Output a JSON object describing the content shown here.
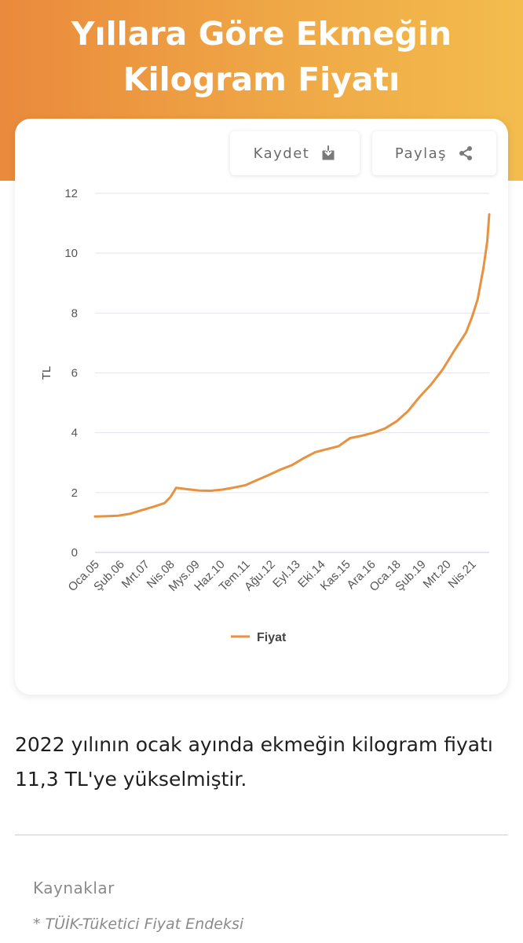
{
  "header": {
    "title_line1": "Yıllara Göre Ekmeğin",
    "title_line2": "Kilogram Fiyatı"
  },
  "toolbar": {
    "save_label": "Kaydet",
    "save_icon": "download-icon",
    "share_label": "Paylaş",
    "share_icon": "share-icon"
  },
  "colors": {
    "line": "#e8913f",
    "header_gradient_start": "#ea8a3c",
    "header_gradient_end": "#f3bc4d"
  },
  "chart_data": {
    "type": "line",
    "title": "",
    "xlabel": "",
    "ylabel": "TL",
    "ylim": [
      0,
      12
    ],
    "yticks": [
      0,
      2,
      4,
      6,
      8,
      10,
      12
    ],
    "xticks": [
      "Oca.05",
      "Şub.06",
      "Mrt.07",
      "Nis.08",
      "Mys.09",
      "Haz.10",
      "Tem.11",
      "Ağu.12",
      "Eyl.13",
      "Eki.14",
      "Kas.15",
      "Ara.16",
      "Oca.18",
      "Şub.19",
      "Mrt.20",
      "Nis.21"
    ],
    "grid": true,
    "legend_position": "bottom",
    "series": [
      {
        "name": "Fiyat",
        "x": [
          "2005-01",
          "2005-07",
          "2006-01",
          "2006-07",
          "2007-01",
          "2007-07",
          "2008-01",
          "2008-04",
          "2008-07",
          "2009-01",
          "2009-07",
          "2010-01",
          "2010-07",
          "2011-01",
          "2011-07",
          "2012-01",
          "2012-07",
          "2013-01",
          "2013-07",
          "2014-01",
          "2014-07",
          "2015-01",
          "2015-07",
          "2016-01",
          "2016-07",
          "2017-01",
          "2017-07",
          "2018-01",
          "2018-07",
          "2019-01",
          "2019-07",
          "2020-01",
          "2020-07",
          "2021-01",
          "2021-04",
          "2021-07",
          "2021-10",
          "2021-12",
          "2022-01"
        ],
        "values": [
          1.2,
          1.21,
          1.23,
          1.29,
          1.41,
          1.52,
          1.65,
          1.85,
          2.16,
          2.11,
          2.07,
          2.06,
          2.1,
          2.17,
          2.25,
          2.42,
          2.59,
          2.77,
          2.92,
          3.15,
          3.35,
          3.45,
          3.55,
          3.82,
          3.9,
          4.0,
          4.14,
          4.38,
          4.72,
          5.2,
          5.62,
          6.12,
          6.75,
          7.35,
          7.85,
          8.45,
          9.5,
          10.4,
          11.3
        ]
      }
    ]
  },
  "caption": {
    "text": "2022 yılının ocak ayında ekmeğin kilogram fiyatı 11,3 TL'ye yükselmiştir."
  },
  "sources": {
    "title": "Kaynaklar",
    "item": "* TÜİK-Tüketici Fiyat Endeksi"
  }
}
